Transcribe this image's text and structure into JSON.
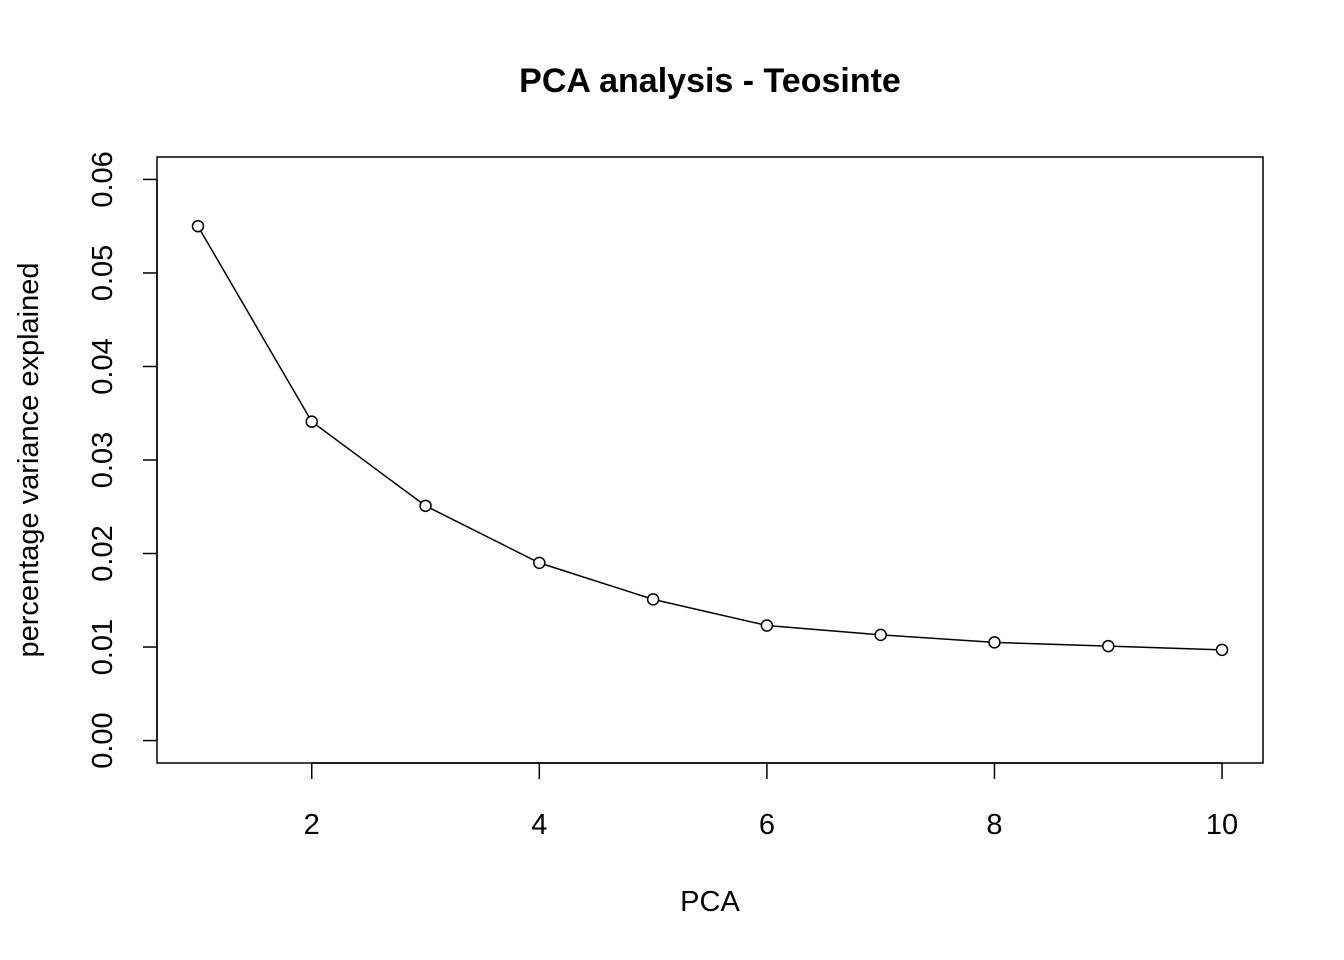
{
  "chart_data": {
    "type": "line",
    "title": "PCA analysis - Teosinte",
    "xlabel": "PCA",
    "ylabel": "percentage variance explained",
    "xlim": [
      0.64,
      10.36
    ],
    "ylim": [
      -0.0024,
      0.0624
    ],
    "x_ticks": [
      2,
      4,
      6,
      8,
      10
    ],
    "x_tick_labels": [
      "2",
      "4",
      "6",
      "8",
      "10"
    ],
    "y_ticks": [
      0.0,
      0.01,
      0.02,
      0.03,
      0.04,
      0.05,
      0.06
    ],
    "y_tick_labels": [
      "0.00",
      "0.01",
      "0.02",
      "0.03",
      "0.04",
      "0.05",
      "0.06"
    ],
    "x": [
      1,
      2,
      3,
      4,
      5,
      6,
      7,
      8,
      9,
      10
    ],
    "y": [
      0.055,
      0.0341,
      0.0251,
      0.019,
      0.0151,
      0.0123,
      0.0113,
      0.0105,
      0.0101,
      0.0097
    ],
    "marker": "open-circle",
    "line_color": "#000000",
    "grid": false,
    "box": true
  }
}
